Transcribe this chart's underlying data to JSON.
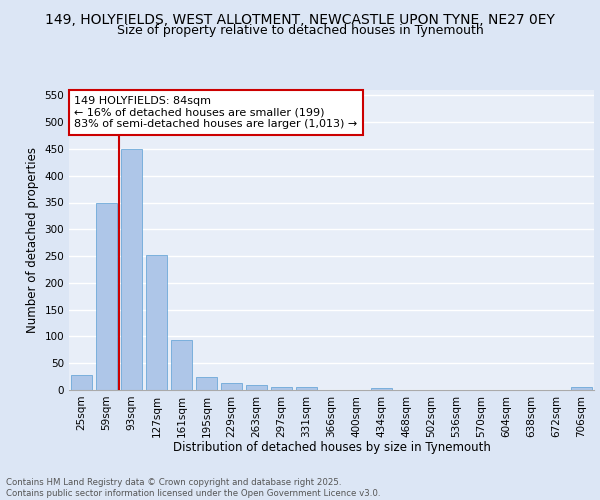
{
  "title_line1": "149, HOLYFIELDS, WEST ALLOTMENT, NEWCASTLE UPON TYNE, NE27 0EY",
  "title_line2": "Size of property relative to detached houses in Tynemouth",
  "xlabel": "Distribution of detached houses by size in Tynemouth",
  "ylabel": "Number of detached properties",
  "categories": [
    "25sqm",
    "59sqm",
    "93sqm",
    "127sqm",
    "161sqm",
    "195sqm",
    "229sqm",
    "263sqm",
    "297sqm",
    "331sqm",
    "366sqm",
    "400sqm",
    "434sqm",
    "468sqm",
    "502sqm",
    "536sqm",
    "570sqm",
    "604sqm",
    "638sqm",
    "672sqm",
    "706sqm"
  ],
  "values": [
    28,
    350,
    450,
    252,
    93,
    24,
    13,
    10,
    6,
    6,
    0,
    0,
    4,
    0,
    0,
    0,
    0,
    0,
    0,
    0,
    5
  ],
  "bar_color": "#aec6e8",
  "bar_edge_color": "#5a9fd4",
  "vline_color": "#cc0000",
  "annotation_text": "149 HOLYFIELDS: 84sqm\n← 16% of detached houses are smaller (199)\n83% of semi-detached houses are larger (1,013) →",
  "annotation_box_color": "#ffffff",
  "annotation_box_edge_color": "#cc0000",
  "ylim": [
    0,
    560
  ],
  "yticks": [
    0,
    50,
    100,
    150,
    200,
    250,
    300,
    350,
    400,
    450,
    500,
    550
  ],
  "bg_color": "#e8eef8",
  "grid_color": "#ffffff",
  "footer_text": "Contains HM Land Registry data © Crown copyright and database right 2025.\nContains public sector information licensed under the Open Government Licence v3.0.",
  "title_fontsize": 10,
  "subtitle_fontsize": 9,
  "axis_label_fontsize": 8.5,
  "tick_fontsize": 7.5,
  "annotation_fontsize": 8,
  "fig_bg_color": "#dce6f5"
}
